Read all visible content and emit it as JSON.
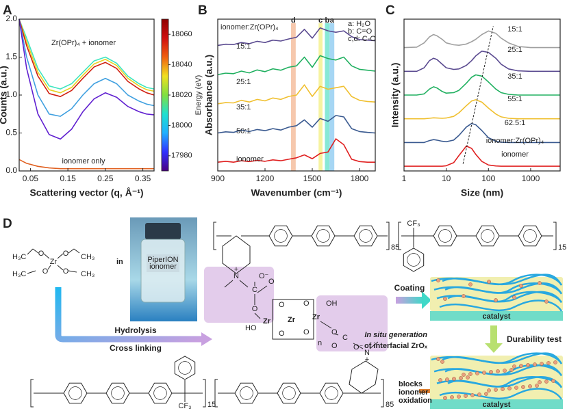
{
  "chart_data": [
    {
      "type": "line",
      "panel_label": "A",
      "xlabel": "Scattering vector (q, Å⁻¹)",
      "ylabel": "Counts (a.u.)",
      "x": [
        0.02,
        0.04,
        0.07,
        0.1,
        0.13,
        0.16,
        0.19,
        0.22,
        0.25,
        0.28,
        0.31,
        0.34,
        0.36,
        0.38
      ],
      "xlim": [
        0.02,
        0.38
      ],
      "xticks": [
        0.05,
        0.15,
        0.25,
        0.35
      ],
      "ylim": [
        0,
        2.0
      ],
      "yticks": [
        {
          "value": 0,
          "label": "0.0"
        },
        {
          "value": 0.5,
          "label": "0.5"
        },
        {
          "value": 1.0,
          "label": "1.0"
        },
        {
          "value": 1.5,
          "label": "1.5"
        },
        {
          "value": 2.0,
          "label": "2.0"
        }
      ],
      "series": [
        {
          "color": "#40e6c0",
          "values": [
            2.0,
            1.75,
            1.35,
            1.12,
            1.08,
            1.15,
            1.3,
            1.45,
            1.5,
            1.42,
            1.25,
            1.15,
            1.1,
            1.08
          ]
        },
        {
          "color": "#e8d020",
          "values": [
            2.0,
            1.7,
            1.3,
            1.07,
            1.03,
            1.1,
            1.26,
            1.41,
            1.47,
            1.39,
            1.22,
            1.12,
            1.07,
            1.05
          ]
        },
        {
          "color": "#d02010",
          "values": [
            2.0,
            1.65,
            1.25,
            1.02,
            0.98,
            1.06,
            1.22,
            1.37,
            1.43,
            1.35,
            1.18,
            1.08,
            1.03,
            1.0
          ]
        },
        {
          "color": "#40a0e0",
          "values": [
            2.0,
            1.5,
            1.0,
            0.75,
            0.72,
            0.82,
            1.0,
            1.15,
            1.22,
            1.15,
            1.0,
            0.92,
            0.88,
            0.86
          ]
        },
        {
          "color": "#6020d0",
          "values": [
            2.0,
            1.35,
            0.75,
            0.48,
            0.42,
            0.55,
            0.78,
            0.95,
            1.03,
            0.97,
            0.85,
            0.78,
            0.75,
            0.74
          ]
        },
        {
          "color": "#e06020",
          "values": [
            0.15,
            0.1,
            0.06,
            0.04,
            0.03,
            0.03,
            0.03,
            0.03,
            0.03,
            0.03,
            0.03,
            0.03,
            0.03,
            0.03
          ]
        }
      ],
      "annotations": [
        "Zr(OPr)₄ + ionomer",
        "ionomer only"
      ],
      "colorbar_label": "Energy (eV)",
      "clim": [
        17970,
        18070
      ],
      "cticks": [
        17980,
        18000,
        18020,
        18040,
        18060
      ],
      "colormap": [
        "#4b0082",
        "#3030ff",
        "#20b0ff",
        "#20e0d0",
        "#80e040",
        "#f0e020",
        "#f06010",
        "#d01010",
        "#900000"
      ]
    },
    {
      "type": "line",
      "panel_label": "B",
      "xlabel": "Wavenumber (cm⁻¹)",
      "ylabel": "Absorbance (a.u.)",
      "x": [
        900,
        950,
        1000,
        1050,
        1100,
        1150,
        1200,
        1250,
        1300,
        1350,
        1400,
        1450,
        1500,
        1550,
        1600,
        1650,
        1700,
        1750,
        1800,
        1850,
        1900
      ],
      "xlim": [
        900,
        1900
      ],
      "xticks": [
        900,
        1200,
        1500,
        1800
      ],
      "ylim": [
        0,
        5.2
      ],
      "series": [
        {
          "name": "ionomer",
          "color": "#e02020",
          "values": [
            0.3,
            0.33,
            0.3,
            0.35,
            0.32,
            0.36,
            0.33,
            0.38,
            0.35,
            0.4,
            0.45,
            0.55,
            0.42,
            0.6,
            0.65,
            1.1,
            0.9,
            0.4,
            0.32,
            0.3,
            0.3
          ]
        },
        {
          "name": "50:1",
          "color": "#3a5a90",
          "values": [
            1.3,
            1.34,
            1.32,
            1.4,
            1.35,
            1.42,
            1.38,
            1.45,
            1.4,
            1.5,
            1.55,
            1.75,
            1.5,
            1.8,
            1.7,
            1.9,
            1.85,
            1.45,
            1.35,
            1.32,
            1.3
          ]
        },
        {
          "name": "35:1",
          "color": "#f0c030",
          "values": [
            2.3,
            2.34,
            2.33,
            2.42,
            2.36,
            2.45,
            2.4,
            2.5,
            2.45,
            2.55,
            2.6,
            2.95,
            2.55,
            2.9,
            2.8,
            2.85,
            2.9,
            2.55,
            2.42,
            2.38,
            2.36
          ]
        },
        {
          "name": "25:1",
          "color": "#20b060",
          "values": [
            3.3,
            3.35,
            3.33,
            3.42,
            3.36,
            3.46,
            3.4,
            3.5,
            3.45,
            3.55,
            3.6,
            3.9,
            3.55,
            3.95,
            3.85,
            3.8,
            3.9,
            3.6,
            3.48,
            3.45,
            3.42
          ]
        },
        {
          "name": "15:1",
          "color": "#5a4a90",
          "values": [
            4.3,
            4.34,
            4.33,
            4.4,
            4.36,
            4.44,
            4.4,
            4.48,
            4.45,
            4.52,
            4.58,
            4.85,
            4.55,
            4.9,
            4.8,
            4.75,
            4.8,
            4.6,
            4.5,
            4.48,
            4.46
          ]
        }
      ],
      "bands": [
        {
          "label": "d",
          "x": [
            1365,
            1395
          ],
          "color": "#f3b591"
        },
        {
          "label": "c",
          "x": [
            1540,
            1565
          ],
          "color": "#f3ef80"
        },
        {
          "label": "b",
          "x": [
            1580,
            1610
          ],
          "color": "#60e0c8"
        },
        {
          "label": "a",
          "x": [
            1610,
            1640
          ],
          "color": "#88c8f0"
        }
      ],
      "annotations": [
        "ionomer:Zr(OPr)₄",
        "a: H₂O",
        "b: C=O",
        "c,d: C-O"
      ]
    },
    {
      "type": "line",
      "panel_label": "C",
      "xlabel": "Size (nm)",
      "ylabel": "Intensity (a.u.)",
      "xscale": "log",
      "x": [
        1,
        2,
        3,
        4,
        5,
        6,
        8,
        10,
        15,
        20,
        30,
        40,
        50,
        70,
        100,
        150,
        200,
        300,
        500,
        1000,
        5000
      ],
      "xlim": [
        1,
        5000
      ],
      "xticks": [
        1,
        10,
        100,
        1000
      ],
      "ylim": [
        -0.2,
        6.2
      ],
      "series": [
        {
          "name": "ionomer",
          "color": "#e02020",
          "values": [
            0,
            0,
            0,
            0,
            0,
            0,
            0,
            0.02,
            0.15,
            0.45,
            0.85,
            0.75,
            0.5,
            0.2,
            0.05,
            0.01,
            0,
            0,
            0,
            0,
            0
          ]
        },
        {
          "name": "62.5:1",
          "color": "#3a5a90",
          "values": [
            1,
            1,
            1,
            1.08,
            1.12,
            1.1,
            1.05,
            1.03,
            1.1,
            1.3,
            1.65,
            1.8,
            1.75,
            1.5,
            1.2,
            1.05,
            1.01,
            1,
            1,
            1,
            1
          ]
        },
        {
          "name": "55:1",
          "color": "#f0c030",
          "values": [
            2,
            2,
            2,
            2.02,
            2.04,
            2.03,
            2.02,
            2.03,
            2.1,
            2.25,
            2.55,
            2.75,
            2.8,
            2.7,
            2.45,
            2.2,
            2.08,
            2.02,
            2,
            2,
            2
          ]
        },
        {
          "name": "35:1",
          "color": "#20b060",
          "values": [
            3,
            3,
            3.05,
            3.25,
            3.35,
            3.3,
            3.15,
            3.08,
            3.1,
            3.2,
            3.5,
            3.75,
            3.85,
            3.8,
            3.55,
            3.25,
            3.1,
            3.03,
            3,
            3,
            3
          ]
        },
        {
          "name": "25:1",
          "color": "#5a4a90",
          "values": [
            4,
            4,
            4.15,
            4.45,
            4.55,
            4.5,
            4.3,
            4.15,
            4.08,
            4.1,
            4.25,
            4.45,
            4.65,
            4.85,
            4.8,
            4.55,
            4.3,
            4.1,
            4.02,
            4,
            4
          ]
        },
        {
          "name": "15:1",
          "color": "#a0a0a0",
          "values": [
            5,
            5.02,
            5.2,
            5.45,
            5.55,
            5.5,
            5.35,
            5.2,
            5.12,
            5.1,
            5.15,
            5.25,
            5.35,
            5.55,
            5.7,
            5.6,
            5.4,
            5.2,
            5.05,
            5,
            5
          ]
        }
      ],
      "trend": {
        "x": [
          25,
          130
        ],
        "y": [
          0.1,
          5.9
        ]
      },
      "annotations": [
        "ionomer:Zr(OPr)₄"
      ]
    }
  ],
  "diagram": {
    "label": "D",
    "in": "in",
    "bottle": [
      "PiperION",
      "ionomer"
    ],
    "precursor": {
      "h3c": "H₃C",
      "ch3": "CH₃",
      "o": "O",
      "zr": "Zr"
    },
    "hydrolysis": "Hydrolysis",
    "cross_linking": "Cross linking",
    "chem": {
      "cf3": "CF₃",
      "n": "N",
      "plus": "+",
      "o": "O",
      "o_minus": "O⁻",
      "c": "C",
      "zr": "Zr",
      "ho": "HO",
      "oh": "OH",
      "n_sub": "n",
      "sub85": "85",
      "sub15": "15"
    },
    "coating": "Coating",
    "catalyst": "catalyst",
    "in_situ": [
      "In situ generation",
      "of interfacial ZrOₓ"
    ],
    "durability": "Durability test",
    "blocks": [
      "blocks",
      "ionomer",
      "oxidation"
    ]
  }
}
